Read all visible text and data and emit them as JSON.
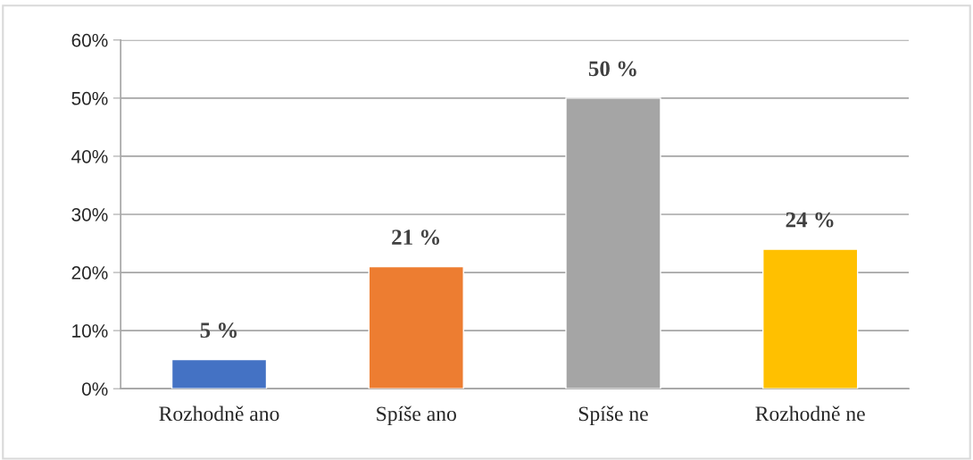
{
  "chart_data": {
    "type": "bar",
    "categories": [
      "Rozhodně ano",
      "Spíše ano",
      "Spíše ne",
      "Rozhodně ne"
    ],
    "values": [
      5,
      21,
      50,
      24
    ],
    "colors": [
      "#4472c4",
      "#ed7d31",
      "#a5a5a5",
      "#ffc000"
    ],
    "value_labels": [
      "5 %",
      "21 %",
      "50 %",
      "24 %"
    ],
    "ylim": [
      0,
      60
    ],
    "yticks": [
      {
        "value": 0,
        "label": "0%"
      },
      {
        "value": 10,
        "label": "10%"
      },
      {
        "value": 20,
        "label": "20%"
      },
      {
        "value": 30,
        "label": "30%"
      },
      {
        "value": 40,
        "label": "40%"
      },
      {
        "value": 50,
        "label": "50%"
      },
      {
        "value": 60,
        "label": "60%"
      }
    ],
    "grid": "y",
    "legend": false
  }
}
